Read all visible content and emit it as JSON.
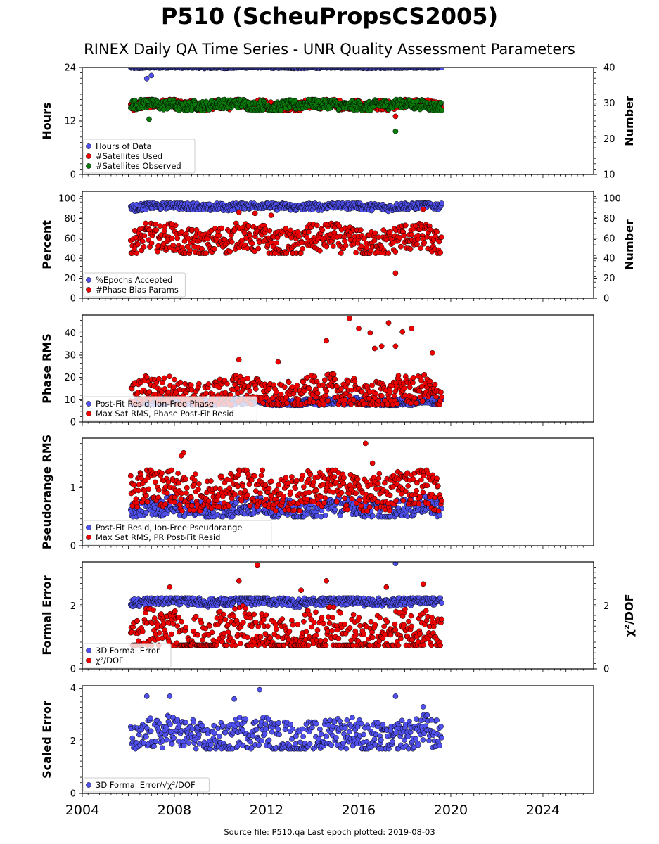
{
  "title": "P510 (ScheuPropsCS2005)",
  "subtitle": "RINEX Daily QA Time Series - UNR Quality Assessment Parameters",
  "footer": "Source file: P510.qa Last epoch plotted: 2019-08-03",
  "colors": {
    "blue": "#5050ee",
    "red": "#ee0000",
    "green": "#0a7a0a",
    "edge": "#000000"
  },
  "chart_data": [
    {
      "type": "scatter",
      "ylabel": "Hours",
      "ylabel_right": "Number",
      "ylim": [
        0,
        24
      ],
      "ylim_right": [
        10,
        40
      ],
      "yticks": [
        0,
        12,
        24
      ],
      "yticks_right": [
        10,
        20,
        30,
        40
      ],
      "legend": "lower-left",
      "series": [
        {
          "name": "Hours of Data",
          "color": "blue",
          "axis": "left",
          "base": 24,
          "lo": 23.6,
          "hi": 24,
          "outliers": [
            [
              2006.8,
              21.5
            ],
            [
              2007.0,
              22.2
            ]
          ]
        },
        {
          "name": "#Satellites Used",
          "color": "red",
          "axis": "right",
          "base": 29.5,
          "lo": 28,
          "hi": 31,
          "outliers": [
            [
              2009.4,
              30.0
            ],
            [
              2017.6,
              26.3
            ]
          ]
        },
        {
          "name": "#Satellites Observed",
          "color": "green",
          "axis": "right",
          "base": 29.5,
          "lo": 28,
          "hi": 31,
          "outliers": [
            [
              2006.9,
              25.5
            ],
            [
              2017.6,
              22.1
            ]
          ]
        }
      ]
    },
    {
      "type": "scatter",
      "ylabel": "Percent",
      "ylabel_right": "Number",
      "ylim": [
        0,
        107
      ],
      "ylim_right": [
        0,
        107
      ],
      "yticks": [
        0,
        20,
        40,
        60,
        80,
        100
      ],
      "yticks_right": [
        0,
        20,
        40,
        60,
        80,
        100
      ],
      "legend": "lower-left",
      "series": [
        {
          "name": "%Epochs Accepted",
          "color": "blue",
          "axis": "left",
          "base": 92,
          "lo": 87,
          "hi": 95,
          "outliers": []
        },
        {
          "name": "#Phase Bias Params",
          "color": "red",
          "axis": "right",
          "base": 58,
          "lo": 45,
          "hi": 75,
          "outliers": [
            [
              2010.8,
              86
            ],
            [
              2011.5,
              85
            ],
            [
              2012.2,
              83
            ],
            [
              2018.8,
              89
            ],
            [
              2017.6,
              25
            ],
            [
              2007.9,
              74
            ]
          ]
        }
      ]
    },
    {
      "type": "scatter",
      "ylabel": "Phase RMS",
      "ylim": [
        0,
        48
      ],
      "yticks": [
        0,
        10,
        20,
        30,
        40
      ],
      "legend": "lower-left",
      "series": [
        {
          "name": "Post-Fit Resid, Ion-Free Phase",
          "color": "blue",
          "axis": "left",
          "base": 9,
          "lo": 7.5,
          "hi": 11,
          "outliers": []
        },
        {
          "name": "Max Sat RMS, Phase Post-Fit Resid",
          "color": "red",
          "axis": "left",
          "base": 13,
          "lo": 8,
          "hi": 22,
          "outliers": [
            [
              2015.6,
              46.5
            ],
            [
              2016.0,
              42
            ],
            [
              2016.5,
              40
            ],
            [
              2017.3,
              44.5
            ],
            [
              2018.3,
              42
            ],
            [
              2014.6,
              36.5
            ],
            [
              2017.9,
              40.5
            ],
            [
              2019.2,
              31
            ],
            [
              2016.7,
              33
            ],
            [
              2017.0,
              34
            ],
            [
              2017.6,
              34
            ],
            [
              2012.5,
              27
            ],
            [
              2010.8,
              28
            ]
          ]
        }
      ]
    },
    {
      "type": "scatter",
      "ylabel": "Pseudorange RMS",
      "ylim": [
        0,
        1.85
      ],
      "yticks": [
        0,
        1
      ],
      "legend": "lower-left",
      "series": [
        {
          "name": "Post-Fit Resid, Ion-Free Pseudorange",
          "color": "blue",
          "axis": "left",
          "base": 0.65,
          "lo": 0.5,
          "hi": 0.85,
          "outliers": []
        },
        {
          "name": "Max Sat RMS, PR Post-Fit Resid",
          "color": "red",
          "axis": "left",
          "base": 0.95,
          "lo": 0.6,
          "hi": 1.3,
          "outliers": [
            [
              2016.3,
              1.76
            ],
            [
              2016.6,
              1.42
            ],
            [
              2008.4,
              1.6
            ],
            [
              2008.3,
              1.55
            ]
          ]
        }
      ]
    },
    {
      "type": "scatter",
      "ylabel": "Formal Error",
      "ylabel_right": "χ²/DOF",
      "ylim": [
        0,
        3.4
      ],
      "ylim_right": [
        0,
        3.4
      ],
      "yticks": [
        0,
        2
      ],
      "yticks_right": [
        0,
        2
      ],
      "legend": "lower-left",
      "series": [
        {
          "name": "3D Formal Error",
          "color": "blue",
          "axis": "left",
          "base": 2.15,
          "lo": 1.95,
          "hi": 2.25,
          "outliers": [
            [
              2017.6,
              3.35
            ]
          ]
        },
        {
          "name": "χ²/DOF",
          "color": "red",
          "axis": "right",
          "base": 1.1,
          "lo": 0.75,
          "hi": 2.2,
          "outliers": [
            [
              2011.6,
              3.3
            ],
            [
              2014.6,
              2.8
            ],
            [
              2010.8,
              2.8
            ],
            [
              2017.2,
              2.6
            ],
            [
              2018.8,
              2.7
            ],
            [
              2013.5,
              2.5
            ],
            [
              2007.8,
              2.6
            ]
          ]
        }
      ]
    },
    {
      "type": "scatter",
      "ylabel": "Scaled Error",
      "ylim": [
        0,
        4.1
      ],
      "yticks": [
        0,
        2,
        4
      ],
      "legend": "lower-left",
      "series": [
        {
          "name": "3D Formal Error/√χ²/DOF",
          "color": "blue",
          "axis": "left",
          "base": 2.2,
          "lo": 1.7,
          "hi": 3.0,
          "outliers": [
            [
              2011.7,
              3.95
            ],
            [
              2017.6,
              3.7
            ],
            [
              2006.8,
              3.7
            ],
            [
              2007.8,
              3.7
            ],
            [
              2010.6,
              3.6
            ],
            [
              2018.8,
              3.3
            ]
          ]
        }
      ]
    }
  ],
  "x_axis": {
    "ticks": [
      2004,
      2008,
      2012,
      2016,
      2020,
      2024
    ],
    "labels": [
      "2004",
      "2008",
      "2012",
      "2016",
      "2020",
      "2024"
    ],
    "range": [
      2004,
      2026.2
    ],
    "data_start": 2006.1,
    "data_end": 2019.6
  }
}
